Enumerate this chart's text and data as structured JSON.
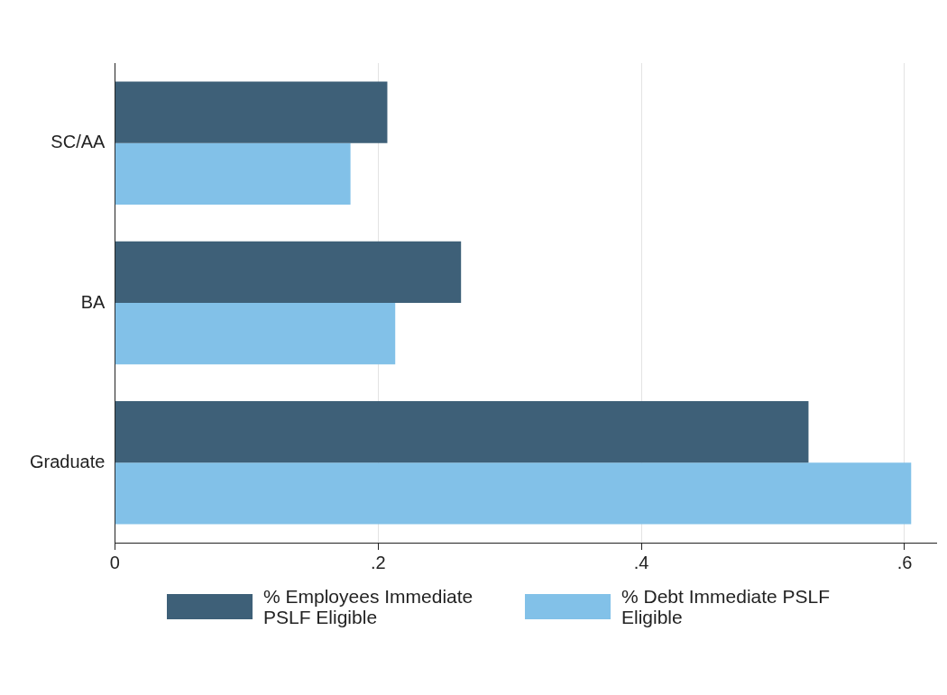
{
  "chart_data": {
    "type": "bar",
    "orientation": "horizontal",
    "categories": [
      "SC/AA",
      "BA",
      "Graduate"
    ],
    "series": [
      {
        "name": "% Employees Immediate PSLF Eligible",
        "color": "#3e6078",
        "values": [
          0.207,
          0.263,
          0.527
        ]
      },
      {
        "name": "% Debt Immediate PSLF Eligible",
        "color": "#82c1e8",
        "values": [
          0.179,
          0.213,
          0.605
        ]
      }
    ],
    "xlim": [
      0,
      0.624
    ],
    "xticks": [
      0,
      {
        "value": 0.2,
        "label": ".2"
      },
      {
        "value": 0.4,
        "label": ".4"
      },
      {
        "value": 0.6,
        "label": ".6"
      }
    ],
    "grid": "x",
    "legend": "bottom"
  }
}
